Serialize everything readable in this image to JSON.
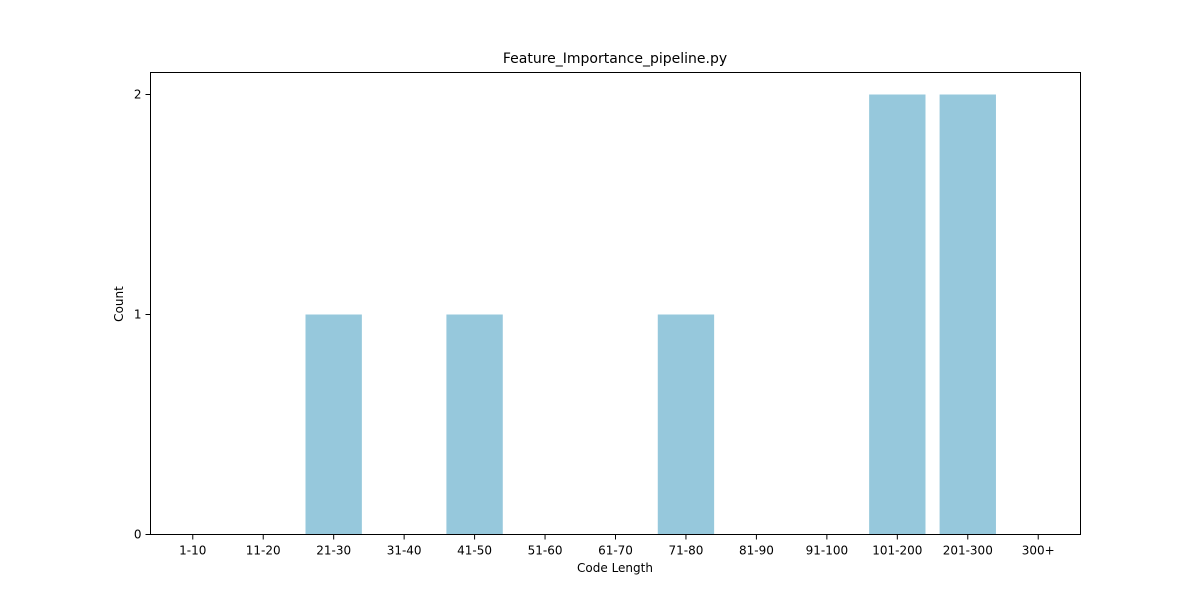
{
  "chart_data": {
    "type": "bar",
    "title": "Feature_Importance_pipeline.py",
    "xlabel": "Code Length",
    "ylabel": "Count",
    "categories": [
      "1-10",
      "11-20",
      "21-30",
      "31-40",
      "41-50",
      "51-60",
      "61-70",
      "71-80",
      "81-90",
      "91-100",
      "101-200",
      "201-300",
      "300+"
    ],
    "values": [
      0,
      0,
      1,
      0,
      1,
      0,
      0,
      1,
      0,
      0,
      2,
      2,
      0
    ],
    "ylim": [
      0,
      2.1
    ],
    "yticks": [
      0,
      1,
      2
    ],
    "bar_color": "#96c8dc",
    "grid": false,
    "legend": "none"
  }
}
